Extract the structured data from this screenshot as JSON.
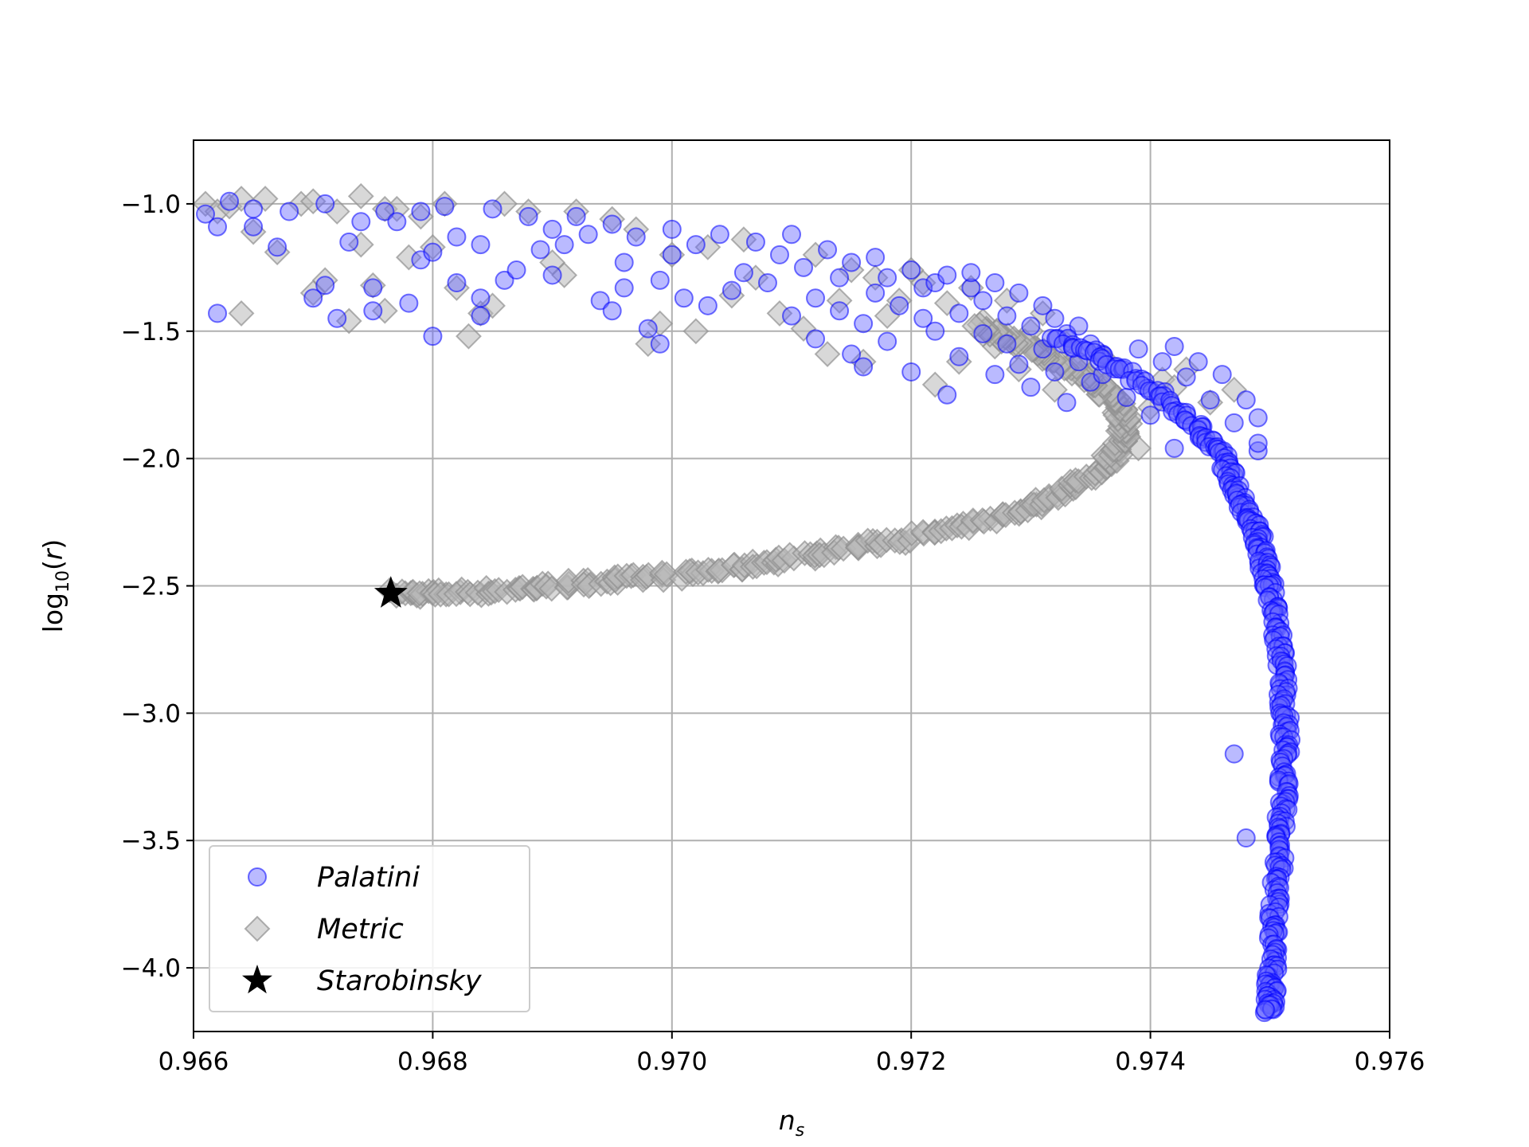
{
  "chart_data": {
    "type": "scatter",
    "title": "",
    "xlabel": "n",
    "xlabel_sub": "s",
    "ylabel_prefix": "log",
    "ylabel_sub": "10",
    "ylabel_suffix": "(",
    "ylabel_var": "r",
    "ylabel_close": ")",
    "xlim": [
      0.966,
      0.976
    ],
    "ylim": [
      -4.25,
      -0.75
    ],
    "xticks": [
      0.966,
      0.968,
      0.97,
      0.972,
      0.974,
      0.976
    ],
    "xtick_labels": [
      "0.966",
      "0.968",
      "0.970",
      "0.972",
      "0.974",
      "0.976"
    ],
    "yticks": [
      -1.0,
      -1.5,
      -2.0,
      -2.5,
      -3.0,
      -3.5,
      -4.0
    ],
    "ytick_labels": [
      "−1.0",
      "−1.5",
      "−2.0",
      "−2.5",
      "−3.0",
      "−3.5",
      "−4.0"
    ],
    "grid": true,
    "legend_position": "lower-left",
    "colors": {
      "palatini_fill": "#6666ff",
      "palatini_edge": "#0000ff",
      "metric_fill": "#b8b8b8",
      "metric_edge": "#909090",
      "starobinsky": "#000000",
      "grid": "#b0b0b0"
    },
    "series": [
      {
        "name": "Palatini",
        "marker": "circle",
        "cluster_points": [
          [
            0.9661,
            -1.04
          ],
          [
            0.9662,
            -1.43
          ],
          [
            0.9662,
            -1.09
          ],
          [
            0.9663,
            -0.99
          ],
          [
            0.9665,
            -1.02
          ],
          [
            0.9665,
            -1.09
          ],
          [
            0.9667,
            -1.17
          ],
          [
            0.9668,
            -1.03
          ],
          [
            0.967,
            -1.37
          ],
          [
            0.9671,
            -1.32
          ],
          [
            0.9671,
            -1.0
          ],
          [
            0.9672,
            -1.45
          ],
          [
            0.9673,
            -1.15
          ],
          [
            0.9674,
            -1.07
          ],
          [
            0.9675,
            -1.33
          ],
          [
            0.9675,
            -1.42
          ],
          [
            0.9676,
            -1.03
          ],
          [
            0.9677,
            -1.07
          ],
          [
            0.9678,
            -1.39
          ],
          [
            0.9679,
            -1.22
          ],
          [
            0.9679,
            -1.03
          ],
          [
            0.968,
            -1.52
          ],
          [
            0.968,
            -1.19
          ],
          [
            0.9681,
            -1.01
          ],
          [
            0.9682,
            -1.31
          ],
          [
            0.9682,
            -1.13
          ],
          [
            0.9684,
            -1.16
          ],
          [
            0.9684,
            -1.44
          ],
          [
            0.9684,
            -1.37
          ],
          [
            0.9685,
            -1.02
          ],
          [
            0.9686,
            -1.3
          ],
          [
            0.9687,
            -1.26
          ],
          [
            0.9688,
            -1.05
          ],
          [
            0.9689,
            -1.18
          ],
          [
            0.969,
            -1.1
          ],
          [
            0.969,
            -1.28
          ],
          [
            0.9691,
            -1.16
          ],
          [
            0.9692,
            -1.05
          ],
          [
            0.9693,
            -1.12
          ],
          [
            0.9694,
            -1.38
          ],
          [
            0.9695,
            -1.42
          ],
          [
            0.9695,
            -1.08
          ],
          [
            0.9696,
            -1.33
          ],
          [
            0.9696,
            -1.23
          ],
          [
            0.9697,
            -1.13
          ],
          [
            0.9698,
            -1.49
          ],
          [
            0.9699,
            -1.55
          ],
          [
            0.9699,
            -1.3
          ],
          [
            0.97,
            -1.1
          ],
          [
            0.97,
            -1.2
          ],
          [
            0.9701,
            -1.37
          ],
          [
            0.9702,
            -1.16
          ],
          [
            0.9703,
            -1.4
          ],
          [
            0.9704,
            -1.12
          ],
          [
            0.9705,
            -1.34
          ],
          [
            0.9706,
            -1.27
          ],
          [
            0.9707,
            -1.15
          ],
          [
            0.9708,
            -1.31
          ],
          [
            0.9709,
            -1.2
          ],
          [
            0.971,
            -1.44
          ],
          [
            0.971,
            -1.12
          ],
          [
            0.9711,
            -1.25
          ],
          [
            0.9712,
            -1.53
          ],
          [
            0.9712,
            -1.37
          ],
          [
            0.9713,
            -1.18
          ],
          [
            0.9714,
            -1.42
          ],
          [
            0.9714,
            -1.29
          ],
          [
            0.9715,
            -1.59
          ],
          [
            0.9715,
            -1.23
          ],
          [
            0.9716,
            -1.64
          ],
          [
            0.9716,
            -1.47
          ],
          [
            0.9717,
            -1.35
          ],
          [
            0.9717,
            -1.21
          ],
          [
            0.9718,
            -1.54
          ],
          [
            0.9718,
            -1.29
          ],
          [
            0.9719,
            -1.4
          ],
          [
            0.972,
            -1.66
          ],
          [
            0.972,
            -1.26
          ],
          [
            0.9721,
            -1.45
          ],
          [
            0.9721,
            -1.33
          ],
          [
            0.9722,
            -1.31
          ],
          [
            0.9722,
            -1.5
          ],
          [
            0.9723,
            -1.75
          ],
          [
            0.9723,
            -1.28
          ],
          [
            0.9724,
            -1.43
          ],
          [
            0.9724,
            -1.6
          ],
          [
            0.9725,
            -1.33
          ],
          [
            0.9725,
            -1.27
          ],
          [
            0.9726,
            -1.51
          ],
          [
            0.9726,
            -1.38
          ],
          [
            0.9727,
            -1.67
          ],
          [
            0.9727,
            -1.31
          ],
          [
            0.9728,
            -1.44
          ],
          [
            0.9728,
            -1.55
          ],
          [
            0.9729,
            -1.35
          ],
          [
            0.9729,
            -1.63
          ],
          [
            0.973,
            -1.48
          ],
          [
            0.973,
            -1.72
          ],
          [
            0.9731,
            -1.4
          ],
          [
            0.9731,
            -1.57
          ],
          [
            0.9732,
            -1.66
          ],
          [
            0.9732,
            -1.45
          ],
          [
            0.9733,
            -1.78
          ],
          [
            0.9733,
            -1.51
          ],
          [
            0.9734,
            -1.62
          ],
          [
            0.9734,
            -1.48
          ],
          [
            0.9735,
            -1.7
          ],
          [
            0.9735,
            -1.55
          ],
          [
            0.9736,
            -1.59
          ],
          [
            0.9736,
            -1.67
          ],
          [
            0.9737,
            -1.64
          ],
          [
            0.9738,
            -1.76
          ],
          [
            0.9739,
            -1.57
          ],
          [
            0.974,
            -1.83
          ],
          [
            0.9741,
            -1.62
          ],
          [
            0.9742,
            -1.56
          ],
          [
            0.9742,
            -1.96
          ],
          [
            0.9743,
            -1.68
          ],
          [
            0.9744,
            -1.62
          ],
          [
            0.9745,
            -1.77
          ],
          [
            0.9746,
            -1.67
          ],
          [
            0.9747,
            -1.86
          ],
          [
            0.9748,
            -1.77
          ],
          [
            0.9749,
            -1.84
          ],
          [
            0.9749,
            -1.97
          ],
          [
            0.9749,
            -1.94
          ],
          [
            0.9747,
            -3.16
          ],
          [
            0.9748,
            -3.49
          ]
        ],
        "curve": [
          [
            0.9732,
            -1.52
          ],
          [
            0.9737,
            -1.63
          ],
          [
            0.9741,
            -1.76
          ],
          [
            0.9744,
            -1.88
          ],
          [
            0.9746,
            -1.99
          ],
          [
            0.9747,
            -2.1
          ],
          [
            0.9748,
            -2.2
          ],
          [
            0.9749,
            -2.3
          ],
          [
            0.97495,
            -2.4
          ],
          [
            0.975,
            -2.5
          ],
          [
            0.97505,
            -2.65
          ],
          [
            0.9751,
            -2.8
          ],
          [
            0.97512,
            -2.95
          ],
          [
            0.97513,
            -3.1
          ],
          [
            0.97512,
            -3.25
          ],
          [
            0.9751,
            -3.4
          ],
          [
            0.97508,
            -3.55
          ],
          [
            0.97505,
            -3.7
          ],
          [
            0.97503,
            -3.85
          ],
          [
            0.97502,
            -4.0
          ],
          [
            0.97501,
            -4.1
          ],
          [
            0.975,
            -4.18
          ]
        ]
      },
      {
        "name": "Metric",
        "marker": "diamond",
        "cluster_points": [
          [
            0.9661,
            -1.0
          ],
          [
            0.9662,
            -1.03
          ],
          [
            0.9663,
            -1.01
          ],
          [
            0.9664,
            -0.98
          ],
          [
            0.9664,
            -1.43
          ],
          [
            0.9665,
            -1.11
          ],
          [
            0.9666,
            -0.98
          ],
          [
            0.9667,
            -1.19
          ],
          [
            0.9669,
            -1.0
          ],
          [
            0.967,
            -1.35
          ],
          [
            0.967,
            -0.99
          ],
          [
            0.9671,
            -1.3
          ],
          [
            0.9672,
            -1.03
          ],
          [
            0.9673,
            -1.46
          ],
          [
            0.9674,
            -1.16
          ],
          [
            0.9674,
            -0.97
          ],
          [
            0.9675,
            -1.32
          ],
          [
            0.9676,
            -1.02
          ],
          [
            0.9676,
            -1.42
          ],
          [
            0.9677,
            -1.02
          ],
          [
            0.9678,
            -1.21
          ],
          [
            0.9679,
            -1.05
          ],
          [
            0.968,
            -1.17
          ],
          [
            0.9681,
            -1.0
          ],
          [
            0.9682,
            -1.33
          ],
          [
            0.9683,
            -1.52
          ],
          [
            0.9684,
            -1.43
          ],
          [
            0.9685,
            -1.4
          ],
          [
            0.9686,
            -1.0
          ],
          [
            0.9688,
            -1.03
          ],
          [
            0.969,
            -1.23
          ],
          [
            0.9691,
            -1.28
          ],
          [
            0.9692,
            -1.03
          ],
          [
            0.9695,
            -1.06
          ],
          [
            0.9697,
            -1.1
          ],
          [
            0.9698,
            -1.55
          ],
          [
            0.9699,
            -1.47
          ],
          [
            0.97,
            -1.2
          ],
          [
            0.9702,
            -1.5
          ],
          [
            0.9703,
            -1.17
          ],
          [
            0.9705,
            -1.36
          ],
          [
            0.9706,
            -1.14
          ],
          [
            0.9707,
            -1.29
          ],
          [
            0.9709,
            -1.43
          ],
          [
            0.9711,
            -1.49
          ],
          [
            0.9712,
            -1.2
          ],
          [
            0.9713,
            -1.59
          ],
          [
            0.9714,
            -1.38
          ],
          [
            0.9715,
            -1.26
          ],
          [
            0.9716,
            -1.62
          ],
          [
            0.9717,
            -1.29
          ],
          [
            0.9718,
            -1.44
          ],
          [
            0.9719,
            -1.38
          ],
          [
            0.972,
            -1.26
          ],
          [
            0.9721,
            -1.31
          ],
          [
            0.9722,
            -1.71
          ],
          [
            0.9723,
            -1.39
          ],
          [
            0.9724,
            -1.62
          ],
          [
            0.9725,
            -1.33
          ],
          [
            0.9726,
            -1.46
          ],
          [
            0.9727,
            -1.56
          ],
          [
            0.9728,
            -1.38
          ],
          [
            0.9729,
            -1.65
          ],
          [
            0.973,
            -1.5
          ],
          [
            0.9731,
            -1.43
          ],
          [
            0.9732,
            -1.73
          ],
          [
            0.9733,
            -1.55
          ],
          [
            0.9734,
            -1.62
          ],
          [
            0.9735,
            -1.68
          ],
          [
            0.9736,
            -1.6
          ],
          [
            0.9737,
            -1.82
          ],
          [
            0.9738,
            -1.9
          ],
          [
            0.9739,
            -1.96
          ],
          [
            0.974,
            -1.8
          ],
          [
            0.9741,
            -1.69
          ],
          [
            0.9742,
            -1.72
          ],
          [
            0.9743,
            -1.65
          ],
          [
            0.9745,
            -1.78
          ],
          [
            0.9747,
            -1.73
          ]
        ],
        "curve": [
          [
            0.9677,
            -2.53
          ],
          [
            0.968,
            -2.53
          ],
          [
            0.9685,
            -2.52
          ],
          [
            0.969,
            -2.5
          ],
          [
            0.9695,
            -2.48
          ],
          [
            0.97,
            -2.46
          ],
          [
            0.9705,
            -2.43
          ],
          [
            0.971,
            -2.39
          ],
          [
            0.9715,
            -2.35
          ],
          [
            0.972,
            -2.31
          ],
          [
            0.9725,
            -2.26
          ],
          [
            0.973,
            -2.19
          ],
          [
            0.9733,
            -2.12
          ],
          [
            0.9736,
            -2.03
          ],
          [
            0.97375,
            -1.95
          ],
          [
            0.9738,
            -1.87
          ],
          [
            0.97375,
            -1.8
          ],
          [
            0.9736,
            -1.73
          ],
          [
            0.9734,
            -1.66
          ],
          [
            0.9731,
            -1.59
          ],
          [
            0.9728,
            -1.53
          ],
          [
            0.9725,
            -1.48
          ]
        ]
      },
      {
        "name": "Starobinsky",
        "marker": "star",
        "points": [
          [
            0.96765,
            -2.53
          ]
        ]
      }
    ]
  }
}
